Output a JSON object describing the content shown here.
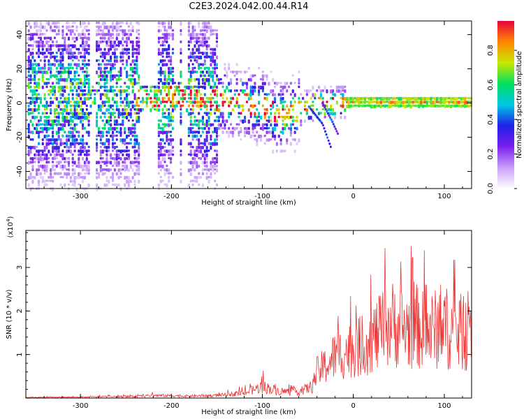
{
  "title": "C2E3.2024.042.00.44.R14",
  "chart_data": [
    {
      "type": "heatmap",
      "xlabel": "Height of straight line (km)",
      "ylabel": "Frequency (Hz)",
      "xlim": [
        -360,
        130
      ],
      "ylim": [
        -50,
        48
      ],
      "x_ticks": [
        -300,
        -200,
        -100,
        0,
        100
      ],
      "y_ticks": [
        -40,
        -20,
        0,
        20,
        40
      ],
      "colorbar": {
        "label": "Normalized spectral amplitude",
        "range": [
          0,
          0.97
        ],
        "ticks": [
          0.0,
          0.2,
          0.4,
          0.6,
          0.8
        ],
        "colors": [
          "#ffffff",
          "#c8a0f8",
          "#7a1ff0",
          "#2020e8",
          "#00c8e8",
          "#00e060",
          "#c8e800",
          "#ff8800",
          "#e8003a"
        ]
      },
      "ridges": [
        {
          "x": [
            -360,
            -240,
            -200,
            -150,
            -100,
            -80,
            -60,
            -40,
            -20,
            0,
            130
          ],
          "y": [
            2,
            2,
            4,
            2,
            -2,
            -8,
            -4,
            0,
            0,
            1,
            1
          ]
        },
        {
          "x": [
            -50,
            -35,
            -25
          ],
          "y": [
            -2,
            -12,
            -27
          ]
        },
        {
          "x": [
            -35,
            -25,
            -18
          ],
          "y": [
            0,
            -10,
            -18
          ]
        }
      ]
    },
    {
      "type": "line",
      "xlabel": "Height of straight line (km)",
      "ylabel": "SNR (10 * v/v)",
      "y_multiplier": "(x10",
      "y_multiplier_exp": "4",
      "xlim": [
        -360,
        130
      ],
      "ylim": [
        0,
        3.85
      ],
      "x_ticks": [
        -300,
        -200,
        -100,
        0,
        100
      ],
      "y_ticks": [
        1,
        2,
        3
      ],
      "line_color": "#ee3333",
      "envelope": {
        "x": [
          -360,
          -300,
          -240,
          -220,
          -180,
          -150,
          -120,
          -100,
          -80,
          -60,
          -45,
          -40,
          -30,
          -20,
          -10,
          0,
          10,
          20,
          30,
          40,
          50,
          60,
          70,
          80,
          90,
          100,
          110,
          120,
          130
        ],
        "y": [
          0.02,
          0.03,
          0.05,
          0.08,
          0.06,
          0.08,
          0.15,
          0.35,
          0.2,
          0.2,
          0.35,
          0.8,
          1.0,
          1.3,
          1.4,
          1.5,
          1.6,
          1.8,
          2.0,
          2.3,
          2.2,
          2.1,
          2.2,
          2.0,
          2.1,
          2.2,
          2.0,
          2.0,
          1.9
        ],
        "max": [
          0.04,
          0.05,
          0.1,
          0.15,
          0.1,
          0.12,
          0.3,
          0.65,
          0.35,
          0.3,
          0.6,
          1.4,
          1.8,
          2.4,
          2.2,
          2.5,
          2.8,
          3.2,
          3.6,
          3.85,
          3.5,
          3.85,
          3.7,
          3.5,
          3.0,
          3.3,
          3.6,
          3.7,
          2.5
        ]
      }
    }
  ]
}
